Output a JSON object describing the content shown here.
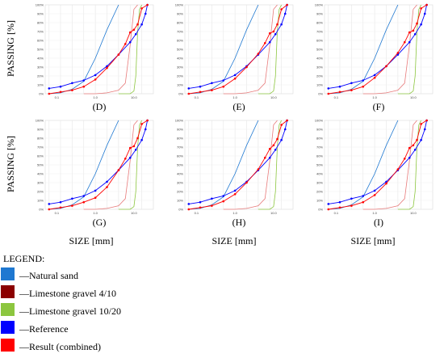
{
  "axes": {
    "ylabel": "PASSING [%]",
    "xlabel": "SIZE [mm]",
    "y_ticks": [
      "0%",
      "10%",
      "20%",
      "30%",
      "40%",
      "50%",
      "60%",
      "70%",
      "80%",
      "90%",
      "100%"
    ],
    "x_ticks": [
      "0.1",
      "1.0",
      "10.0"
    ]
  },
  "legend": {
    "title": "LEGEND:",
    "items": [
      {
        "label": "—Natural sand",
        "color": "#1f78d1"
      },
      {
        "label": "—Limestone gravel 4/10",
        "color": "#8b0000"
      },
      {
        "label": "—Limestone gravel 10/20",
        "color": "#8cc63f"
      },
      {
        "label": "—Reference",
        "color": "#0000ff"
      },
      {
        "label": "—Result (combined)",
        "color": "#ff0000"
      }
    ]
  },
  "chart_data": [
    {
      "type": "line",
      "panel": "(D)",
      "x_scale": "log",
      "xlim": [
        0.05,
        32
      ],
      "ylim": [
        0,
        100
      ],
      "grid": "vertical",
      "series": [
        {
          "name": "Natural sand",
          "color": "#1f78d1",
          "x": [
            0.063,
            0.125,
            0.25,
            0.5,
            1,
            2,
            4
          ],
          "y": [
            0,
            1,
            5,
            14,
            40,
            72,
            100
          ]
        },
        {
          "name": "Limestone gravel 4/10",
          "color": "#e87a7a",
          "x": [
            0.5,
            1,
            2,
            4,
            6,
            8,
            10,
            12.5
          ],
          "y": [
            0,
            0,
            1,
            4,
            12,
            55,
            95,
            100
          ]
        },
        {
          "name": "Limestone gravel 10/20",
          "color": "#8cc63f",
          "x": [
            4,
            8,
            10,
            11.2,
            12.5,
            14,
            16
          ],
          "y": [
            0,
            0,
            3,
            20,
            70,
            95,
            100
          ]
        },
        {
          "name": "Reference",
          "color": "#0000ff",
          "x": [
            0.063,
            0.125,
            0.25,
            0.5,
            1,
            2,
            4,
            8,
            11.2,
            16,
            20,
            22.4
          ],
          "y": [
            6,
            8,
            12,
            15,
            21,
            31,
            44,
            58,
            67,
            78,
            90,
            100
          ]
        },
        {
          "name": "Result (combined)",
          "color": "#ff0000",
          "x": [
            0.063,
            0.125,
            0.25,
            0.5,
            1,
            2,
            4,
            6,
            8,
            10,
            12.5,
            16,
            22.4
          ],
          "y": [
            0,
            2,
            4,
            8,
            16,
            29,
            44,
            56,
            69,
            72,
            78,
            96,
            100
          ]
        }
      ]
    },
    {
      "type": "line",
      "panel": "(E)",
      "x_scale": "log",
      "xlim": [
        0.05,
        32
      ],
      "ylim": [
        0,
        100
      ],
      "grid": "vertical",
      "series": [
        {
          "name": "Natural sand",
          "color": "#1f78d1",
          "x": [
            0.063,
            0.125,
            0.25,
            0.5,
            1,
            2,
            4
          ],
          "y": [
            0,
            1,
            5,
            14,
            40,
            72,
            100
          ]
        },
        {
          "name": "Limestone gravel 4/10",
          "color": "#e87a7a",
          "x": [
            0.5,
            1,
            2,
            4,
            6,
            8,
            10,
            12.5
          ],
          "y": [
            0,
            0,
            1,
            4,
            12,
            55,
            95,
            100
          ]
        },
        {
          "name": "Limestone gravel 10/20",
          "color": "#8cc63f",
          "x": [
            4,
            8,
            10,
            11.2,
            12.5,
            14,
            16
          ],
          "y": [
            0,
            0,
            3,
            20,
            70,
            95,
            100
          ]
        },
        {
          "name": "Reference",
          "color": "#0000ff",
          "x": [
            0.063,
            0.125,
            0.25,
            0.5,
            1,
            2,
            4,
            8,
            11.2,
            16,
            20,
            22.4
          ],
          "y": [
            6,
            8,
            12,
            15,
            21,
            31,
            44,
            58,
            67,
            78,
            90,
            100
          ]
        },
        {
          "name": "Result (combined)",
          "color": "#ff0000",
          "x": [
            0.063,
            0.125,
            0.25,
            0.5,
            1,
            2,
            4,
            6,
            8,
            10,
            12.5,
            16,
            22.4
          ],
          "y": [
            0,
            2,
            4,
            8,
            17,
            30,
            45,
            57,
            68,
            70,
            78,
            95,
            100
          ]
        }
      ]
    },
    {
      "type": "line",
      "panel": "(F)",
      "x_scale": "log",
      "xlim": [
        0.05,
        32
      ],
      "ylim": [
        0,
        100
      ],
      "grid": "vertical",
      "series": [
        {
          "name": "Natural sand",
          "color": "#1f78d1",
          "x": [
            0.063,
            0.125,
            0.25,
            0.5,
            1,
            2,
            4
          ],
          "y": [
            0,
            1,
            5,
            14,
            40,
            72,
            100
          ]
        },
        {
          "name": "Limestone gravel 4/10",
          "color": "#e87a7a",
          "x": [
            0.5,
            1,
            2,
            4,
            6,
            8,
            10,
            12.5
          ],
          "y": [
            0,
            0,
            1,
            4,
            12,
            55,
            95,
            100
          ]
        },
        {
          "name": "Limestone gravel 10/20",
          "color": "#8cc63f",
          "x": [
            4,
            8,
            10,
            11.2,
            12.5,
            14,
            16
          ],
          "y": [
            0,
            0,
            3,
            20,
            70,
            95,
            100
          ]
        },
        {
          "name": "Reference",
          "color": "#0000ff",
          "x": [
            0.063,
            0.125,
            0.25,
            0.5,
            1,
            2,
            4,
            8,
            11.2,
            16,
            20,
            22.4
          ],
          "y": [
            6,
            8,
            12,
            15,
            21,
            31,
            44,
            58,
            67,
            78,
            90,
            100
          ]
        },
        {
          "name": "Result (combined)",
          "color": "#ff0000",
          "x": [
            0.063,
            0.125,
            0.25,
            0.5,
            1,
            2,
            4,
            6,
            8,
            10,
            12.5,
            16,
            22.4
          ],
          "y": [
            0,
            2,
            4,
            8,
            18,
            31,
            46,
            58,
            69,
            71,
            79,
            96,
            100
          ]
        }
      ]
    },
    {
      "type": "line",
      "panel": "(G)",
      "x_scale": "log",
      "xlim": [
        0.05,
        32
      ],
      "ylim": [
        0,
        100
      ],
      "grid": "vertical",
      "series": [
        {
          "name": "Natural sand",
          "color": "#1f78d1",
          "x": [
            0.063,
            0.125,
            0.25,
            0.5,
            1,
            2,
            4
          ],
          "y": [
            0,
            1,
            5,
            14,
            40,
            72,
            100
          ]
        },
        {
          "name": "Limestone gravel 4/10",
          "color": "#e87a7a",
          "x": [
            0.5,
            1,
            2,
            4,
            6,
            8,
            10,
            12.5
          ],
          "y": [
            0,
            0,
            1,
            4,
            12,
            55,
            95,
            100
          ]
        },
        {
          "name": "Limestone gravel 10/20",
          "color": "#8cc63f",
          "x": [
            4,
            8,
            10,
            11.2,
            12.5,
            14,
            16
          ],
          "y": [
            0,
            0,
            3,
            20,
            70,
            95,
            100
          ]
        },
        {
          "name": "Reference",
          "color": "#0000ff",
          "x": [
            0.063,
            0.125,
            0.25,
            0.5,
            1,
            2,
            4,
            8,
            11.2,
            16,
            20,
            22.4
          ],
          "y": [
            6,
            8,
            12,
            15,
            21,
            31,
            44,
            58,
            67,
            78,
            90,
            100
          ]
        },
        {
          "name": "Result (combined)",
          "color": "#ff0000",
          "x": [
            0.063,
            0.125,
            0.25,
            0.5,
            1,
            2,
            4,
            6,
            8,
            10,
            12.5,
            16,
            22.4
          ],
          "y": [
            0,
            2,
            4,
            8,
            13,
            25,
            44,
            57,
            69,
            71,
            80,
            96,
            100
          ]
        }
      ]
    },
    {
      "type": "line",
      "panel": "(H)",
      "x_scale": "log",
      "xlim": [
        0.05,
        32
      ],
      "ylim": [
        0,
        100
      ],
      "grid": "vertical",
      "series": [
        {
          "name": "Natural sand",
          "color": "#1f78d1",
          "x": [
            0.063,
            0.125,
            0.25,
            0.5,
            1,
            2,
            4
          ],
          "y": [
            0,
            1,
            5,
            14,
            40,
            72,
            100
          ]
        },
        {
          "name": "Limestone gravel 4/10",
          "color": "#e87a7a",
          "x": [
            0.5,
            1,
            2,
            4,
            6,
            8,
            10,
            12.5
          ],
          "y": [
            0,
            0,
            1,
            4,
            12,
            55,
            95,
            100
          ]
        },
        {
          "name": "Limestone gravel 10/20",
          "color": "#8cc63f",
          "x": [
            4,
            8,
            10,
            11.2,
            12.5,
            14,
            16
          ],
          "y": [
            0,
            0,
            3,
            20,
            70,
            95,
            100
          ]
        },
        {
          "name": "Reference",
          "color": "#0000ff",
          "x": [
            0.063,
            0.125,
            0.25,
            0.5,
            1,
            2,
            4,
            8,
            11.2,
            16,
            20,
            22.4
          ],
          "y": [
            6,
            8,
            12,
            15,
            21,
            31,
            44,
            58,
            67,
            78,
            90,
            100
          ]
        },
        {
          "name": "Result (combined)",
          "color": "#ff0000",
          "x": [
            0.063,
            0.125,
            0.25,
            0.5,
            1,
            2,
            4,
            6,
            8,
            10,
            12.5,
            16,
            22.4
          ],
          "y": [
            0,
            2,
            4,
            9,
            17,
            30,
            45,
            58,
            68,
            72,
            79,
            95,
            100
          ]
        }
      ]
    },
    {
      "type": "line",
      "panel": "(I)",
      "x_scale": "log",
      "xlim": [
        0.05,
        32
      ],
      "ylim": [
        0,
        100
      ],
      "grid": "vertical",
      "series": [
        {
          "name": "Natural sand",
          "color": "#1f78d1",
          "x": [
            0.063,
            0.125,
            0.25,
            0.5,
            1,
            2,
            4
          ],
          "y": [
            0,
            1,
            5,
            14,
            40,
            72,
            100
          ]
        },
        {
          "name": "Limestone gravel 4/10",
          "color": "#e87a7a",
          "x": [
            0.5,
            1,
            2,
            4,
            6,
            8,
            10,
            12.5
          ],
          "y": [
            0,
            0,
            1,
            4,
            12,
            55,
            95,
            100
          ]
        },
        {
          "name": "Limestone gravel 10/20",
          "color": "#8cc63f",
          "x": [
            4,
            8,
            10,
            11.2,
            12.5,
            14,
            16
          ],
          "y": [
            0,
            0,
            3,
            20,
            70,
            95,
            100
          ]
        },
        {
          "name": "Reference",
          "color": "#0000ff",
          "x": [
            0.063,
            0.125,
            0.25,
            0.5,
            1,
            2,
            4,
            8,
            11.2,
            16,
            20,
            22.4
          ],
          "y": [
            6,
            8,
            12,
            15,
            21,
            31,
            44,
            58,
            67,
            78,
            90,
            100
          ]
        },
        {
          "name": "Result (combined)",
          "color": "#ff0000",
          "x": [
            0.063,
            0.125,
            0.25,
            0.5,
            1,
            2,
            4,
            6,
            8,
            10,
            12.5,
            16,
            22.4
          ],
          "y": [
            0,
            2,
            4,
            8,
            16,
            29,
            45,
            57,
            69,
            72,
            78,
            96,
            100
          ]
        }
      ]
    }
  ]
}
